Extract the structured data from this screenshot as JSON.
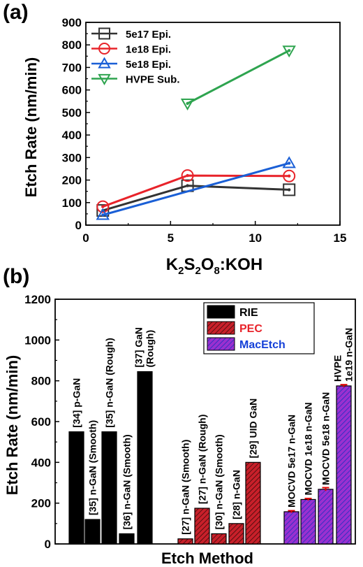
{
  "chart_data": [
    {
      "panel_label": "(a)",
      "type": "line",
      "xlabel": "K2S2O8:KOH",
      "xlabel_parts": [
        "K",
        "2",
        "S",
        "2",
        "O",
        "8",
        ":KOH"
      ],
      "ylabel": "Etch Rate (nm/min)",
      "xlim": [
        0,
        15
      ],
      "ylim": [
        0,
        900
      ],
      "x_ticks": [
        0,
        5,
        10,
        15
      ],
      "y_ticks": [
        0,
        100,
        200,
        300,
        400,
        500,
        600,
        700,
        800,
        900
      ],
      "grid": false,
      "legend_position": "top-left",
      "series": [
        {
          "name": "5e17 Epi.",
          "color": "#333333",
          "marker": "square",
          "x": [
            1,
            6,
            12
          ],
          "y": [
            65,
            175,
            157
          ]
        },
        {
          "name": "1e18 Epi.",
          "color": "#e8232a",
          "marker": "circle",
          "x": [
            1,
            6,
            12
          ],
          "y": [
            82,
            220,
            218
          ]
        },
        {
          "name": "5e18 Epi.",
          "color": "#1a5fd6",
          "marker": "triangle-up",
          "x": [
            1,
            12
          ],
          "y": [
            45,
            275
          ]
        },
        {
          "name": "HVPE Sub.",
          "color": "#2ea44f",
          "marker": "triangle-down",
          "x": [
            6,
            12
          ],
          "y": [
            540,
            775
          ]
        }
      ]
    },
    {
      "panel_label": "(b)",
      "type": "bar",
      "xlabel": "Etch Method",
      "ylabel": "Etch Rate (nm/min)",
      "ylim": [
        0,
        1200
      ],
      "y_ticks": [
        0,
        200,
        400,
        600,
        800,
        1000,
        1200
      ],
      "grid": false,
      "legend_position": "top-right",
      "legend": [
        {
          "name": "RIE",
          "color": "#000000",
          "label_color": "#000000",
          "pattern": "solid"
        },
        {
          "name": "PEC",
          "color": "#d9242a",
          "label_color": "#e8232a",
          "pattern": "hatch"
        },
        {
          "name": "MacEtch",
          "color": "#8a35c9",
          "label_color": "#1440d8",
          "pattern": "hatch"
        }
      ],
      "bars": [
        {
          "label": "[34] p-GaN",
          "value": 550,
          "method": "RIE"
        },
        {
          "label": "[35] n-GaN (Smooth)",
          "value": 120,
          "method": "RIE"
        },
        {
          "label": "[35] n-GaN (Rough)",
          "value": 550,
          "method": "RIE"
        },
        {
          "label": "[36] n-GaN (Smooth)",
          "value": 50,
          "method": "RIE"
        },
        {
          "label": "[37] GaN (Rough)",
          "value": 845,
          "method": "RIE"
        },
        {
          "label": "[27] n-GaN (Smooth)",
          "value": 25,
          "method": "PEC"
        },
        {
          "label": "[27] n-GaN (Rough)",
          "value": 175,
          "method": "PEC"
        },
        {
          "label": "[30] n-GaN (Smooth)",
          "value": 50,
          "method": "PEC"
        },
        {
          "label": "[28] n-GaN",
          "value": 100,
          "method": "PEC"
        },
        {
          "label": "[29] UID GaN",
          "value": 400,
          "method": "PEC"
        },
        {
          "label": "MOCVD 5e17 n-GaN",
          "value": 158,
          "method": "MacEtch",
          "error": 5
        },
        {
          "label": "MOCVD 1e18 n-GaN",
          "value": 218,
          "method": "MacEtch",
          "error": 5
        },
        {
          "label": "MOCVD 5e18 n-GaN",
          "value": 268,
          "method": "MacEtch",
          "error": 8
        },
        {
          "label": "HVPE 1e19 n-GaN",
          "value": 775,
          "method": "MacEtch",
          "error": 6
        }
      ]
    }
  ]
}
